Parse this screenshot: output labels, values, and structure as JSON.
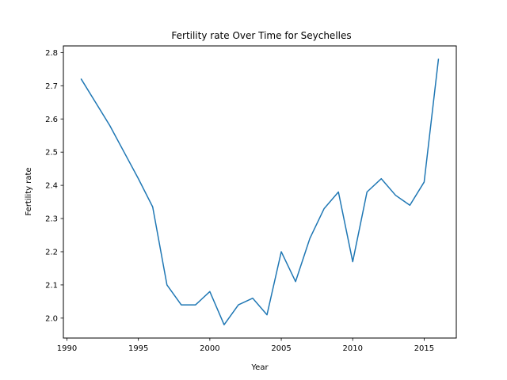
{
  "chart_data": {
    "type": "line",
    "title": "Fertility rate Over Time for Seychelles",
    "xlabel": "Year",
    "ylabel": "Fertility rate",
    "xlim": [
      1989.75,
      2017.25
    ],
    "ylim": [
      1.94,
      2.82
    ],
    "xticks": [
      1990,
      1995,
      2000,
      2005,
      2010,
      2015
    ],
    "yticks": [
      2.0,
      2.1,
      2.2,
      2.3,
      2.4,
      2.5,
      2.6,
      2.7,
      2.8
    ],
    "ytick_labels": [
      "2.0",
      "2.1",
      "2.2",
      "2.3",
      "2.4",
      "2.5",
      "2.6",
      "2.7",
      "2.8"
    ],
    "grid": false,
    "legend": "none",
    "line_color": "#1f77b4",
    "series": [
      {
        "x": [
          1991,
          1992,
          1993,
          1994,
          1995,
          1996,
          1997,
          1998,
          1999,
          2000,
          2001,
          2002,
          2003,
          2004,
          2005,
          2006,
          2007,
          2008,
          2009,
          2010,
          2011,
          2012,
          2013,
          2014,
          2015,
          2016
        ],
        "y": [
          2.72,
          2.65,
          2.58,
          2.5,
          2.42,
          2.335,
          2.1,
          2.04,
          2.04,
          2.08,
          1.98,
          2.04,
          2.06,
          2.01,
          2.2,
          2.11,
          2.24,
          2.33,
          2.38,
          2.17,
          2.38,
          2.42,
          2.37,
          2.34,
          2.41,
          2.78
        ]
      }
    ]
  }
}
